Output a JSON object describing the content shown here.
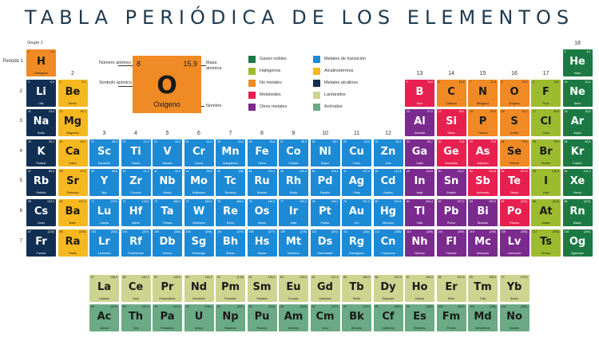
{
  "title": "TABLA PERIÓDICA DE LOS ELEMENTOS",
  "colors": {
    "gases_nobles": "#1b7a43",
    "halogenos": "#9dbb2e",
    "no_metales": "#f08a24",
    "metaloides": "#e8204f",
    "otros_metales": "#7b2a8e",
    "metales_transicion": "#1d8ad6",
    "alcalinoterreos": "#f6b81f",
    "metales_alcalinos": "#112f52",
    "lantanidos": "#cdd490",
    "actinidos": "#6aaa85"
  },
  "labels": {
    "grupo": "Grupo",
    "periodo": "Periodo",
    "groups": [
      "1",
      "2",
      "3",
      "4",
      "5",
      "6",
      "7",
      "8",
      "9",
      "10",
      "11",
      "12",
      "13",
      "14",
      "15",
      "16",
      "17",
      "18"
    ],
    "periods": [
      "1",
      "2",
      "3",
      "4",
      "5",
      "6",
      "7"
    ]
  },
  "key": {
    "num": "8",
    "mass": "15,9",
    "sym": "O",
    "name": "Oxigeno",
    "label_num": "Número atómico",
    "label_mass": "Masa atómica",
    "label_sym": "Símbolo químico",
    "label_name": "Nombre"
  },
  "legend": [
    {
      "label": "Gases nobles",
      "color": "#1b7a43"
    },
    {
      "label": "Halógenos",
      "color": "#9dbb2e"
    },
    {
      "label": "No metales",
      "color": "#f08a24"
    },
    {
      "label": "Metaloides",
      "color": "#e8204f"
    },
    {
      "label": "Otros metales",
      "color": "#7b2a8e"
    },
    {
      "label": "Metales de transición",
      "color": "#1d8ad6"
    },
    {
      "label": "Alcalinotérreos",
      "color": "#f6b81f"
    },
    {
      "label": "Metales alcalinos",
      "color": "#112f52"
    },
    {
      "label": "Lantánidos",
      "color": "#cdd490"
    },
    {
      "label": "Actínidos",
      "color": "#6aaa85"
    }
  ],
  "elements": [
    {
      "n": "1",
      "s": "H",
      "name": "Hidrógeno",
      "m": "1,0",
      "g": 1,
      "p": 1,
      "c": "no_metales"
    },
    {
      "n": "2",
      "s": "He",
      "name": "Helio",
      "m": "4,0",
      "g": 18,
      "p": 1,
      "c": "gases_nobles"
    },
    {
      "n": "3",
      "s": "Li",
      "name": "Litio",
      "m": "6,9",
      "g": 1,
      "p": 2,
      "c": "metales_alcalinos"
    },
    {
      "n": "4",
      "s": "Be",
      "name": "Berilio",
      "m": "9,0",
      "g": 2,
      "p": 2,
      "c": "alcalinoterreos"
    },
    {
      "n": "5",
      "s": "B",
      "name": "Boro",
      "m": "10,8",
      "g": 13,
      "p": 2,
      "c": "metaloides"
    },
    {
      "n": "6",
      "s": "C",
      "name": "Carbono",
      "m": "12,0",
      "g": 14,
      "p": 2,
      "c": "no_metales"
    },
    {
      "n": "7",
      "s": "N",
      "name": "Nitrógeno",
      "m": "14,0",
      "g": 15,
      "p": 2,
      "c": "no_metales"
    },
    {
      "n": "8",
      "s": "O",
      "name": "Oxígeno",
      "m": "15,9",
      "g": 16,
      "p": 2,
      "c": "no_metales"
    },
    {
      "n": "9",
      "s": "F",
      "name": "Flúor",
      "m": "19,0",
      "g": 17,
      "p": 2,
      "c": "halogenos"
    },
    {
      "n": "10",
      "s": "Ne",
      "name": "Neón",
      "m": "20,2",
      "g": 18,
      "p": 2,
      "c": "gases_nobles"
    },
    {
      "n": "11",
      "s": "Na",
      "name": "Sodio",
      "m": "23,0",
      "g": 1,
      "p": 3,
      "c": "metales_alcalinos"
    },
    {
      "n": "12",
      "s": "Mg",
      "name": "Magnesio",
      "m": "24,3",
      "g": 2,
      "p": 3,
      "c": "alcalinoterreos"
    },
    {
      "n": "13",
      "s": "Al",
      "name": "Aluminio",
      "m": "27,0",
      "g": 13,
      "p": 3,
      "c": "otros_metales"
    },
    {
      "n": "14",
      "s": "Si",
      "name": "Silicio",
      "m": "28,1",
      "g": 14,
      "p": 3,
      "c": "metaloides"
    },
    {
      "n": "15",
      "s": "P",
      "name": "Fósforo",
      "m": "31,0",
      "g": 15,
      "p": 3,
      "c": "no_metales"
    },
    {
      "n": "16",
      "s": "S",
      "name": "Azufre",
      "m": "32,1",
      "g": 16,
      "p": 3,
      "c": "no_metales"
    },
    {
      "n": "17",
      "s": "Cl",
      "name": "Cloro",
      "m": "35,5",
      "g": 17,
      "p": 3,
      "c": "halogenos"
    },
    {
      "n": "18",
      "s": "Ar",
      "name": "Argón",
      "m": "39,9",
      "g": 18,
      "p": 3,
      "c": "gases_nobles"
    },
    {
      "n": "19",
      "s": "K",
      "name": "Potasio",
      "m": "39,1",
      "g": 1,
      "p": 4,
      "c": "metales_alcalinos"
    },
    {
      "n": "20",
      "s": "Ca",
      "name": "Calcio",
      "m": "40,1",
      "g": 2,
      "p": 4,
      "c": "alcalinoterreos"
    },
    {
      "n": "21",
      "s": "Sc",
      "name": "Escandio",
      "m": "45,0",
      "g": 3,
      "p": 4,
      "c": "metales_transicion"
    },
    {
      "n": "22",
      "s": "Ti",
      "name": "Titanio",
      "m": "47,9",
      "g": 4,
      "p": 4,
      "c": "metales_transicion"
    },
    {
      "n": "23",
      "s": "V",
      "name": "Vanadio",
      "m": "50,9",
      "g": 5,
      "p": 4,
      "c": "metales_transicion"
    },
    {
      "n": "24",
      "s": "Cr",
      "name": "Cromo",
      "m": "52,0",
      "g": 6,
      "p": 4,
      "c": "metales_transicion"
    },
    {
      "n": "25",
      "s": "Mn",
      "name": "Manganeso",
      "m": "54,9",
      "g": 7,
      "p": 4,
      "c": "metales_transicion"
    },
    {
      "n": "26",
      "s": "Fe",
      "name": "Hierro",
      "m": "55,8",
      "g": 8,
      "p": 4,
      "c": "metales_transicion"
    },
    {
      "n": "27",
      "s": "Co",
      "name": "Cobalto",
      "m": "58,9",
      "g": 9,
      "p": 4,
      "c": "metales_transicion"
    },
    {
      "n": "28",
      "s": "Ni",
      "name": "Níquel",
      "m": "58,7",
      "g": 10,
      "p": 4,
      "c": "metales_transicion"
    },
    {
      "n": "29",
      "s": "Cu",
      "name": "Cobre",
      "m": "63,5",
      "g": 11,
      "p": 4,
      "c": "metales_transicion"
    },
    {
      "n": "30",
      "s": "Zn",
      "name": "Zinc",
      "m": "65,4",
      "g": 12,
      "p": 4,
      "c": "metales_transicion"
    },
    {
      "n": "31",
      "s": "Ga",
      "name": "Galio",
      "m": "69,7",
      "g": 13,
      "p": 4,
      "c": "otros_metales"
    },
    {
      "n": "32",
      "s": "Ge",
      "name": "Germanio",
      "m": "72,6",
      "g": 14,
      "p": 4,
      "c": "metaloides"
    },
    {
      "n": "33",
      "s": "As",
      "name": "Arsénico",
      "m": "74,9",
      "g": 15,
      "p": 4,
      "c": "metaloides"
    },
    {
      "n": "34",
      "s": "Se",
      "name": "Selenio",
      "m": "79,0",
      "g": 16,
      "p": 4,
      "c": "no_metales"
    },
    {
      "n": "35",
      "s": "Br",
      "name": "Bromo",
      "m": "79,9",
      "g": 17,
      "p": 4,
      "c": "halogenos"
    },
    {
      "n": "36",
      "s": "Kr",
      "name": "Kriptón",
      "m": "83,8",
      "g": 18,
      "p": 4,
      "c": "gases_nobles"
    },
    {
      "n": "37",
      "s": "Rb",
      "name": "Rubidio",
      "m": "85,5",
      "g": 1,
      "p": 5,
      "c": "metales_alcalinos"
    },
    {
      "n": "38",
      "s": "Sr",
      "name": "Estroncio",
      "m": "87,6",
      "g": 2,
      "p": 5,
      "c": "alcalinoterreos"
    },
    {
      "n": "39",
      "s": "Y",
      "name": "Itrio",
      "m": "88,9",
      "g": 3,
      "p": 5,
      "c": "metales_transicion"
    },
    {
      "n": "40",
      "s": "Zr",
      "name": "Circonio",
      "m": "91,2",
      "g": 4,
      "p": 5,
      "c": "metales_transicion"
    },
    {
      "n": "41",
      "s": "Nb",
      "name": "Niobio",
      "m": "92,9",
      "g": 5,
      "p": 5,
      "c": "metales_transicion"
    },
    {
      "n": "42",
      "s": "Mo",
      "name": "Molibdeno",
      "m": "95,9",
      "g": 6,
      "p": 5,
      "c": "metales_transicion"
    },
    {
      "n": "43",
      "s": "Tc",
      "name": "Tecnecio",
      "m": "(98)",
      "g": 7,
      "p": 5,
      "c": "metales_transicion"
    },
    {
      "n": "44",
      "s": "Ru",
      "name": "Rutenio",
      "m": "101,1",
      "g": 8,
      "p": 5,
      "c": "metales_transicion"
    },
    {
      "n": "45",
      "s": "Rh",
      "name": "Rodio",
      "m": "102,9",
      "g": 9,
      "p": 5,
      "c": "metales_transicion"
    },
    {
      "n": "46",
      "s": "Pd",
      "name": "Paladio",
      "m": "106,4",
      "g": 10,
      "p": 5,
      "c": "metales_transicion"
    },
    {
      "n": "47",
      "s": "Ag",
      "name": "Plata",
      "m": "107,9",
      "g": 11,
      "p": 5,
      "c": "metales_transicion"
    },
    {
      "n": "48",
      "s": "Cd",
      "name": "Cadmio",
      "m": "112,4",
      "g": 12,
      "p": 5,
      "c": "metales_transicion"
    },
    {
      "n": "49",
      "s": "In",
      "name": "Indio",
      "m": "114,8",
      "g": 13,
      "p": 5,
      "c": "otros_metales"
    },
    {
      "n": "50",
      "s": "Sn",
      "name": "Estaño",
      "m": "118,7",
      "g": 14,
      "p": 5,
      "c": "otros_metales"
    },
    {
      "n": "51",
      "s": "Sb",
      "name": "Antimonio",
      "m": "121,8",
      "g": 15,
      "p": 5,
      "c": "metaloides"
    },
    {
      "n": "52",
      "s": "Te",
      "name": "Telurio",
      "m": "127,6",
      "g": 16,
      "p": 5,
      "c": "metaloides"
    },
    {
      "n": "53",
      "s": "I",
      "name": "Yodo",
      "m": "126,9",
      "g": 17,
      "p": 5,
      "c": "halogenos"
    },
    {
      "n": "54",
      "s": "Xe",
      "name": "Xenón",
      "m": "131,3",
      "g": 18,
      "p": 5,
      "c": "gases_nobles"
    },
    {
      "n": "55",
      "s": "Cs",
      "name": "Cesio",
      "m": "132,9",
      "g": 1,
      "p": 6,
      "c": "metales_alcalinos"
    },
    {
      "n": "56",
      "s": "Ba",
      "name": "Bario",
      "m": "137,3",
      "g": 2,
      "p": 6,
      "c": "alcalinoterreos"
    },
    {
      "n": "71",
      "s": "Lu",
      "name": "Lutecio",
      "m": "175,0",
      "g": 3,
      "p": 6,
      "c": "metales_transicion"
    },
    {
      "n": "72",
      "s": "Hf",
      "name": "Hafnio",
      "m": "178,5",
      "g": 4,
      "p": 6,
      "c": "metales_transicion"
    },
    {
      "n": "73",
      "s": "Ta",
      "name": "Tántalo",
      "m": "180,9",
      "g": 5,
      "p": 6,
      "c": "metales_transicion"
    },
    {
      "n": "74",
      "s": "W",
      "name": "Wolframio",
      "m": "183,8",
      "g": 6,
      "p": 6,
      "c": "metales_transicion"
    },
    {
      "n": "75",
      "s": "Re",
      "name": "Renio",
      "m": "186,2",
      "g": 7,
      "p": 6,
      "c": "metales_transicion"
    },
    {
      "n": "76",
      "s": "Os",
      "name": "Osmio",
      "m": "190,2",
      "g": 8,
      "p": 6,
      "c": "metales_transicion"
    },
    {
      "n": "77",
      "s": "Ir",
      "name": "Iridio",
      "m": "192,2",
      "g": 9,
      "p": 6,
      "c": "metales_transicion"
    },
    {
      "n": "78",
      "s": "Pt",
      "name": "Platino",
      "m": "195,1",
      "g": 10,
      "p": 6,
      "c": "metales_transicion"
    },
    {
      "n": "79",
      "s": "Au",
      "name": "Oro",
      "m": "197,0",
      "g": 11,
      "p": 6,
      "c": "metales_transicion"
    },
    {
      "n": "80",
      "s": "Hg",
      "name": "Mercurio",
      "m": "200,6",
      "g": 12,
      "p": 6,
      "c": "metales_transicion"
    },
    {
      "n": "81",
      "s": "Tl",
      "name": "Talio",
      "m": "204,4",
      "g": 13,
      "p": 6,
      "c": "otros_metales"
    },
    {
      "n": "82",
      "s": "Pb",
      "name": "Plomo",
      "m": "207,2",
      "g": 14,
      "p": 6,
      "c": "otros_metales"
    },
    {
      "n": "83",
      "s": "Bi",
      "name": "Bismuto",
      "m": "209,0",
      "g": 15,
      "p": 6,
      "c": "otros_metales"
    },
    {
      "n": "84",
      "s": "Po",
      "name": "Polonio",
      "m": "(210)",
      "g": 16,
      "p": 6,
      "c": "metaloides"
    },
    {
      "n": "85",
      "s": "At",
      "name": "Astato",
      "m": "(210)",
      "g": 17,
      "p": 6,
      "c": "halogenos"
    },
    {
      "n": "86",
      "s": "Rn",
      "name": "Radón",
      "m": "(222)",
      "g": 18,
      "p": 6,
      "c": "gases_nobles"
    },
    {
      "n": "87",
      "s": "Fr",
      "name": "Francio",
      "m": "(223)",
      "g": 1,
      "p": 7,
      "c": "metales_alcalinos"
    },
    {
      "n": "88",
      "s": "Ra",
      "name": "Radio",
      "m": "(226)",
      "g": 2,
      "p": 7,
      "c": "alcalinoterreos"
    },
    {
      "n": "103",
      "s": "Lr",
      "name": "Laurencio",
      "m": "(262)",
      "g": 3,
      "p": 7,
      "c": "metales_transicion"
    },
    {
      "n": "104",
      "s": "Rf",
      "name": "Rutherfordio",
      "m": "(267)",
      "g": 4,
      "p": 7,
      "c": "metales_transicion"
    },
    {
      "n": "105",
      "s": "Db",
      "name": "Dubnio",
      "m": "(268)",
      "g": 5,
      "p": 7,
      "c": "metales_transicion"
    },
    {
      "n": "106",
      "s": "Sg",
      "name": "Seaborgio",
      "m": "(269)",
      "g": 6,
      "p": 7,
      "c": "metales_transicion"
    },
    {
      "n": "107",
      "s": "Bh",
      "name": "Bohrio",
      "m": "(270)",
      "g": 7,
      "p": 7,
      "c": "metales_transicion"
    },
    {
      "n": "108",
      "s": "Hs",
      "name": "Hassio",
      "m": "(277)",
      "g": 8,
      "p": 7,
      "c": "metales_transicion"
    },
    {
      "n": "109",
      "s": "Mt",
      "name": "Meitnerio",
      "m": "(278)",
      "g": 9,
      "p": 7,
      "c": "metales_transicion"
    },
    {
      "n": "110",
      "s": "Ds",
      "name": "Darmstadtio",
      "m": "(281)",
      "g": 10,
      "p": 7,
      "c": "metales_transicion"
    },
    {
      "n": "111",
      "s": "Rg",
      "name": "Roentgenio",
      "m": "(282)",
      "g": 11,
      "p": 7,
      "c": "metales_transicion"
    },
    {
      "n": "112",
      "s": "Cn",
      "name": "Copernicio",
      "m": "(285)",
      "g": 12,
      "p": 7,
      "c": "metales_transicion"
    },
    {
      "n": "113",
      "s": "Nh",
      "name": "Nihonio",
      "m": "(286)",
      "g": 13,
      "p": 7,
      "c": "otros_metales"
    },
    {
      "n": "114",
      "s": "Fl",
      "name": "Flerovio",
      "m": "(289)",
      "g": 14,
      "p": 7,
      "c": "otros_metales"
    },
    {
      "n": "115",
      "s": "Mc",
      "name": "Moscovio",
      "m": "(290)",
      "g": 15,
      "p": 7,
      "c": "otros_metales"
    },
    {
      "n": "116",
      "s": "Lv",
      "name": "Livermorio",
      "m": "(293)",
      "g": 16,
      "p": 7,
      "c": "otros_metales"
    },
    {
      "n": "117",
      "s": "Ts",
      "name": "Teneso",
      "m": "(294)",
      "g": 17,
      "p": 7,
      "c": "halogenos"
    },
    {
      "n": "118",
      "s": "Og",
      "name": "Oganesón",
      "m": "(294)",
      "g": 18,
      "p": 7,
      "c": "gases_nobles"
    }
  ],
  "lanthanides": [
    {
      "n": "57",
      "s": "La",
      "name": "Lantano",
      "m": "138,9"
    },
    {
      "n": "58",
      "s": "Ce",
      "name": "Cerio",
      "m": "140,1"
    },
    {
      "n": "59",
      "s": "Pr",
      "name": "Praseodimio",
      "m": "140,9"
    },
    {
      "n": "60",
      "s": "Nd",
      "name": "Neodimio",
      "m": "144,2"
    },
    {
      "n": "61",
      "s": "Pm",
      "name": "Prometio",
      "m": "(145)"
    },
    {
      "n": "62",
      "s": "Sm",
      "name": "Samario",
      "m": "150,4"
    },
    {
      "n": "63",
      "s": "Eu",
      "name": "Europio",
      "m": "152,0"
    },
    {
      "n": "64",
      "s": "Gd",
      "name": "Gadolinio",
      "m": "157,3"
    },
    {
      "n": "65",
      "s": "Tb",
      "name": "Terbio",
      "m": "158,9"
    },
    {
      "n": "66",
      "s": "Dy",
      "name": "Disprosio",
      "m": "162,5"
    },
    {
      "n": "67",
      "s": "Ho",
      "name": "Holmio",
      "m": "164,9"
    },
    {
      "n": "68",
      "s": "Er",
      "name": "Erbio",
      "m": "167,3"
    },
    {
      "n": "69",
      "s": "Tm",
      "name": "Tulio",
      "m": "168,9"
    },
    {
      "n": "70",
      "s": "Yb",
      "name": "Iterbio",
      "m": "173,0"
    }
  ],
  "actinides": [
    {
      "n": "89",
      "s": "Ac",
      "name": "Actinio",
      "m": "(227)"
    },
    {
      "n": "90",
      "s": "Th",
      "name": "Torio",
      "m": "232,0"
    },
    {
      "n": "91",
      "s": "Pa",
      "name": "Protactinio",
      "m": "231,0"
    },
    {
      "n": "92",
      "s": "U",
      "name": "Uranio",
      "m": "238,0"
    },
    {
      "n": "93",
      "s": "Np",
      "name": "Neptunio",
      "m": "(237)"
    },
    {
      "n": "94",
      "s": "Pu",
      "name": "Plutonio",
      "m": "(244)"
    },
    {
      "n": "95",
      "s": "Am",
      "name": "Americio",
      "m": "(243)"
    },
    {
      "n": "96",
      "s": "Cm",
      "name": "Curio",
      "m": "(247)"
    },
    {
      "n": "97",
      "s": "Bk",
      "name": "Berkelio",
      "m": "(247)"
    },
    {
      "n": "98",
      "s": "Cf",
      "name": "Californio",
      "m": "(251)"
    },
    {
      "n": "99",
      "s": "Es",
      "name": "Einstenio",
      "m": "(252)"
    },
    {
      "n": "100",
      "s": "Fm",
      "name": "Fermio",
      "m": "(257)"
    },
    {
      "n": "101",
      "s": "Md",
      "name": "Mendelevio",
      "m": "(258)"
    },
    {
      "n": "102",
      "s": "No",
      "name": "Nobelio",
      "m": "(259)"
    }
  ]
}
